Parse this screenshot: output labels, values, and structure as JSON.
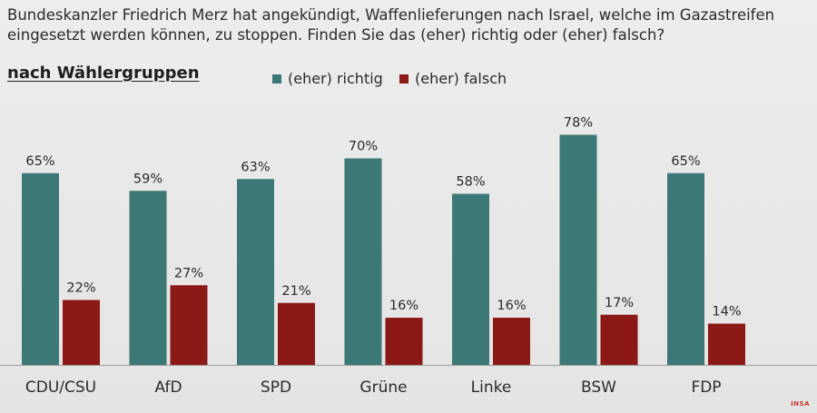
{
  "question": "Bundeskanzler Friedrich Merz hat angekündigt, Waffenlieferungen nach Israel, welche im Gazastreifen eingesetzt werden können, zu stoppen. Finden Sie das (eher) richtig oder (eher) falsch?",
  "watermark": "INSA",
  "chart_data": {
    "type": "bar",
    "subtitle": "nach Wählergruppen",
    "categories": [
      "CDU/CSU",
      "AfD",
      "SPD",
      "Grüne",
      "Linke",
      "BSW",
      "FDP"
    ],
    "series": [
      {
        "name": "(eher) richtig",
        "color": "#3c7876",
        "values": [
          65,
          59,
          63,
          70,
          58,
          78,
          65
        ],
        "labels": [
          "65%",
          "59%",
          "63%",
          "70%",
          "58%",
          "78%",
          "65%"
        ]
      },
      {
        "name": "(eher) falsch",
        "color": "#8b1a16",
        "values": [
          22,
          27,
          21,
          16,
          16,
          17,
          14
        ],
        "labels": [
          "22%",
          "27%",
          "21%",
          "16%",
          "16%",
          "17%",
          "14%"
        ]
      }
    ],
    "ylim": [
      0,
      100
    ],
    "grid": false,
    "legend_position": "top-center"
  }
}
